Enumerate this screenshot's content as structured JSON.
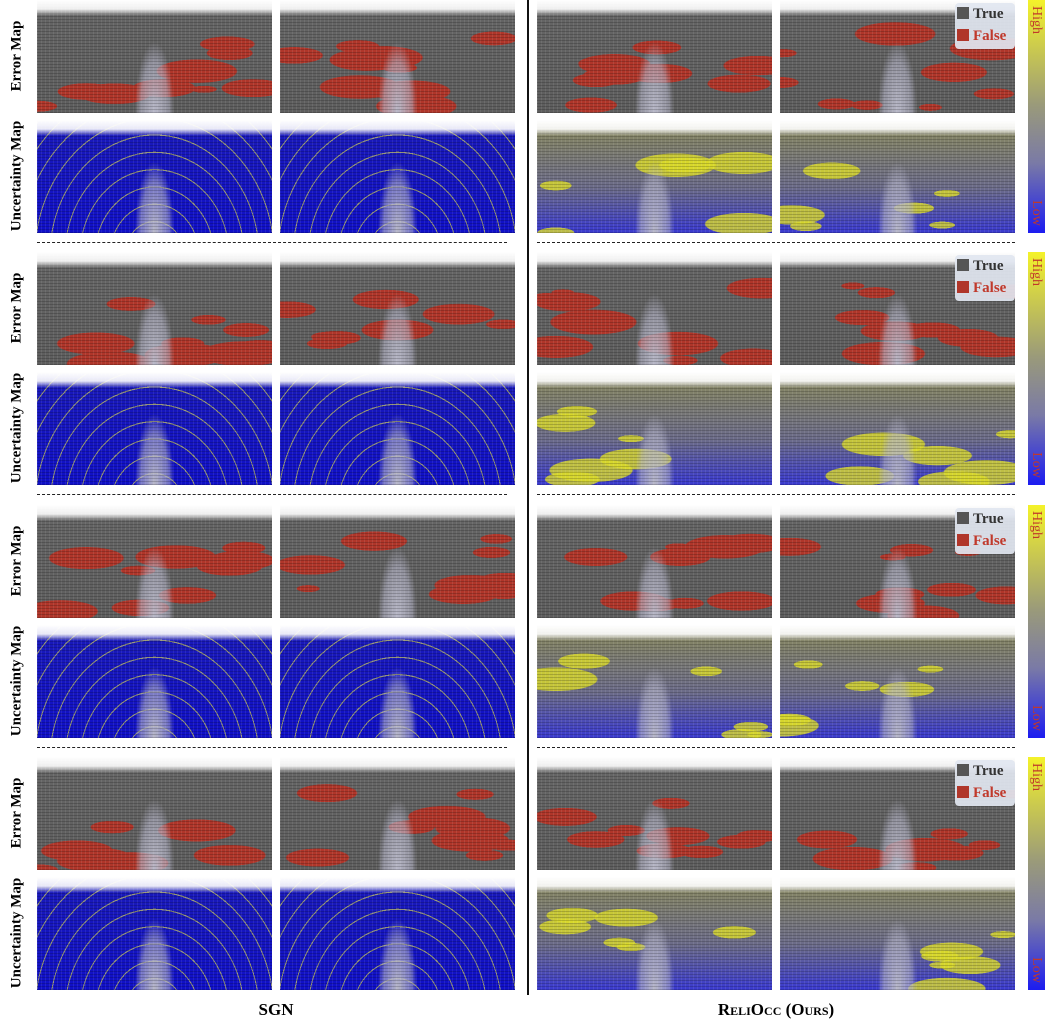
{
  "columns": [
    {
      "title": "SGN"
    },
    {
      "title": "ReliOcc (Ours)"
    }
  ],
  "groups": [
    {
      "error_label": "Error Map",
      "uncertainty_label": "Uncertainty Map",
      "legend": {
        "true": "True",
        "false": "False"
      },
      "colorbar": {
        "high": "High",
        "low": "Low"
      }
    },
    {
      "error_label": "Error Map",
      "uncertainty_label": "Uncertainty Map",
      "legend": {
        "true": "True",
        "false": "False"
      },
      "colorbar": {
        "high": "High",
        "low": "Low"
      }
    },
    {
      "error_label": "Error Map",
      "uncertainty_label": "Uncertainty Map",
      "legend": {
        "true": "True",
        "false": "False"
      },
      "colorbar": {
        "high": "High",
        "low": "Low"
      }
    },
    {
      "error_label": "Error Map",
      "uncertainty_label": "Uncertainty Map",
      "legend": {
        "true": "True",
        "false": "False"
      },
      "colorbar": {
        "high": "High",
        "low": "Low"
      }
    }
  ]
}
